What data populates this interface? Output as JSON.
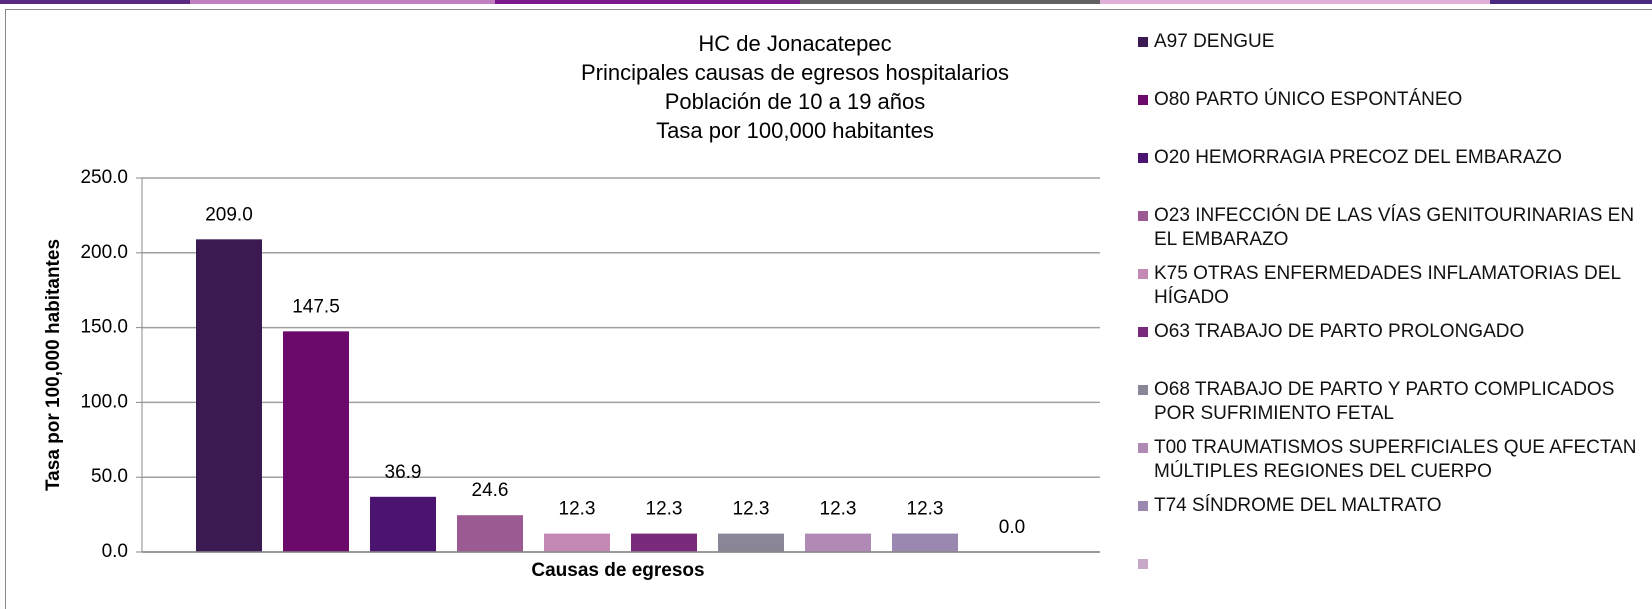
{
  "chart_data": {
    "type": "bar",
    "title": [
      "HC de Jonacatepec",
      "Principales causas de egresos hospitalarios",
      "Población de 10 a 19 años",
      "Tasa por 100,000 habitantes"
    ],
    "x_label": "Causas de egresos",
    "y_label": "Tasa por 100,000 habitantes",
    "ylim": [
      0,
      250
    ],
    "yticks": [
      {
        "value": 0,
        "label": "0.0"
      },
      {
        "value": 50,
        "label": "50.0"
      },
      {
        "value": 100,
        "label": "100.0"
      },
      {
        "value": 150,
        "label": "150.0"
      },
      {
        "value": 200,
        "label": "200.0"
      },
      {
        "value": 250,
        "label": "250.0"
      }
    ],
    "grid": true,
    "legend": "right",
    "series": [
      {
        "name": "A97 DENGUE",
        "color": "#3b1a52",
        "values": [
          209
        ],
        "value_labels": [
          "209.0"
        ]
      },
      {
        "name": "O80 PARTO ÚNICO ESPONTÁNEO",
        "color": "#6b0a6b",
        "values": [
          147.5
        ],
        "value_labels": [
          "147.5"
        ]
      },
      {
        "name": "O20 HEMORRAGIA PRECOZ DEL EMBARAZO",
        "color": "#4b1470",
        "values": [
          36.9
        ],
        "value_labels": [
          "36.9"
        ]
      },
      {
        "name": "O23 INFECCIÓN DE LAS VÍAS GENITOURINARIAS EN EL EMBARAZO",
        "color": "#9b5a92",
        "values": [
          24.6
        ],
        "value_labels": [
          "24.6"
        ]
      },
      {
        "name": "K75 OTRAS ENFERMEDADES INFLAMATORIAS DEL HÍGADO",
        "color": "#c488b4",
        "values": [
          12.3
        ],
        "value_labels": [
          "12.3"
        ]
      },
      {
        "name": "O63 TRABAJO DE PARTO PROLONGADO",
        "color": "#7a2a7a",
        "values": [
          12.3
        ],
        "value_labels": [
          "12.3"
        ]
      },
      {
        "name": "O68 TRABAJO DE PARTO Y PARTO COMPLICADOS POR SUFRIMIENTO FETAL",
        "color": "#8a8698",
        "values": [
          12.3
        ],
        "value_labels": [
          "12.3"
        ]
      },
      {
        "name": "T00 TRAUMATISMOS SUPERFICIALES QUE AFECTAN MÚLTIPLES REGIONES DEL CUERPO",
        "color": "#b08ab4",
        "values": [
          12.3
        ],
        "value_labels": [
          "12.3"
        ]
      },
      {
        "name": "T74 SÍNDROME DEL MALTRATO",
        "color": "#9a88b0",
        "values": [
          12.3
        ],
        "value_labels": [
          "12.3"
        ]
      },
      {
        "name": null,
        "color": "#c8a8c8",
        "values": [
          0
        ],
        "value_labels": [
          "0.0"
        ]
      }
    ]
  }
}
